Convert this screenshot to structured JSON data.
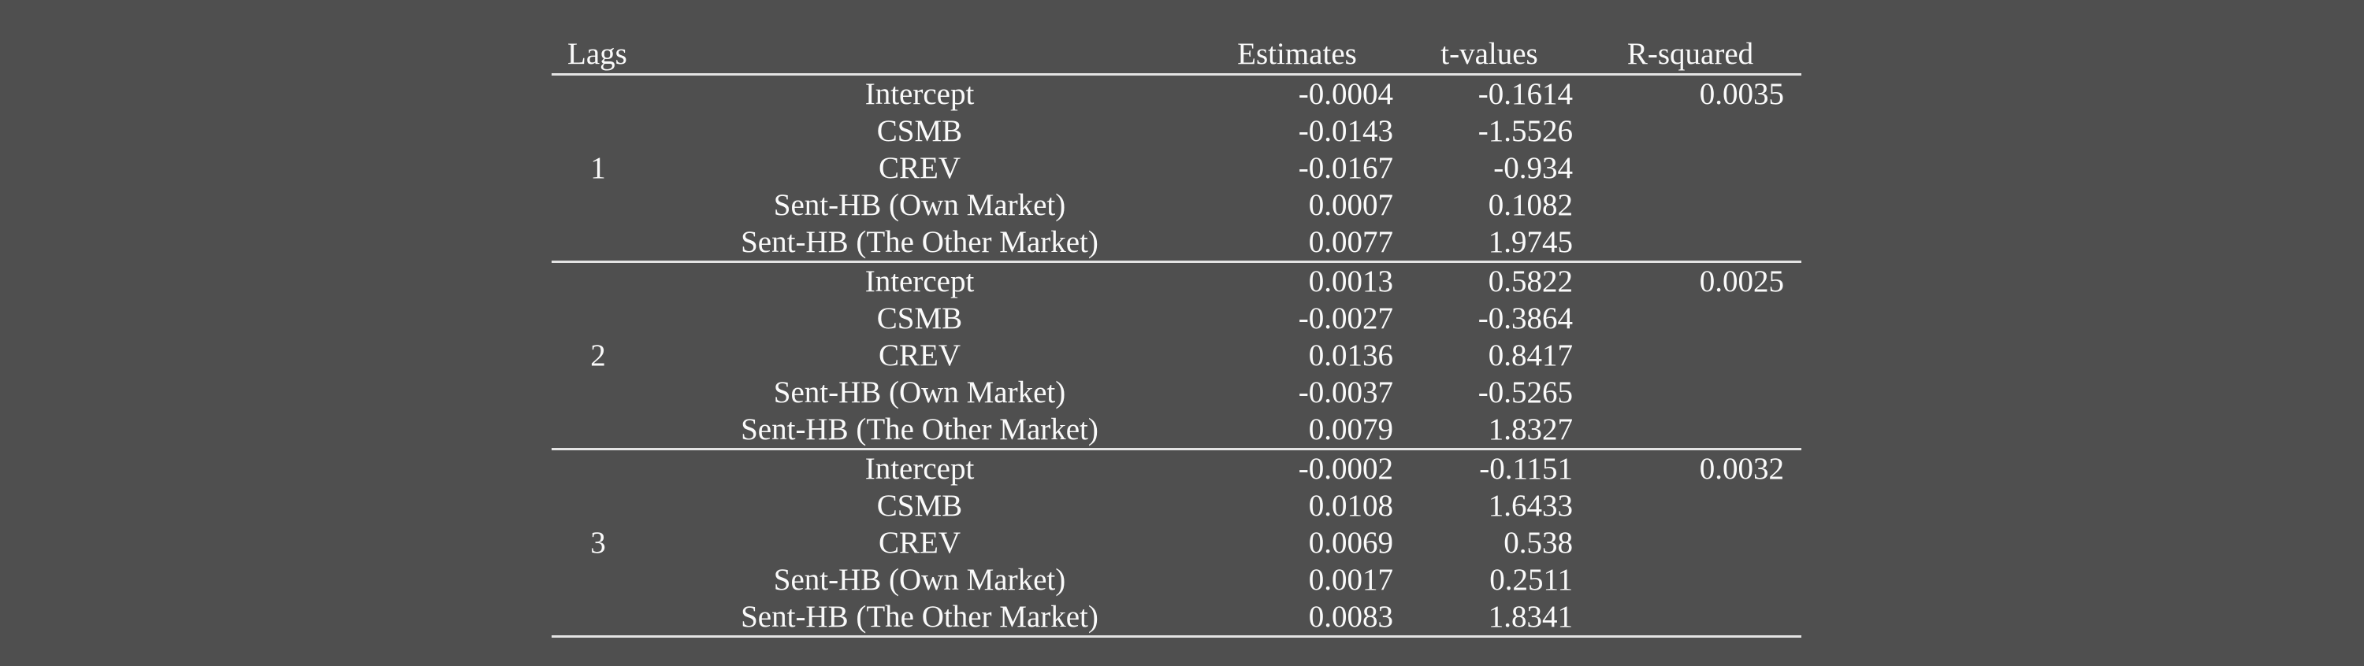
{
  "colors": {
    "background": "#4f4f4f",
    "text": "#fafafa",
    "rule": "#e4e4e4"
  },
  "table": {
    "headers": {
      "lags": "Lags",
      "variable": "",
      "estimates": "Estimates",
      "t_values": "t-values",
      "r_squared": "R-squared"
    },
    "blocks": [
      {
        "lag": "1",
        "rows": [
          {
            "variable": "Intercept",
            "estimate": "-0.0004",
            "t_value": "-0.1614",
            "r_squared": "0.0035"
          },
          {
            "variable": "CSMB",
            "estimate": "-0.0143",
            "t_value": "-1.5526",
            "r_squared": ""
          },
          {
            "variable": "CREV",
            "estimate": "-0.0167",
            "t_value": "-0.934",
            "r_squared": ""
          },
          {
            "variable": "Sent-HB (Own Market)",
            "estimate": "0.0007",
            "t_value": "0.1082",
            "r_squared": ""
          },
          {
            "variable": "Sent-HB (The Other Market)",
            "estimate": "0.0077",
            "t_value": "1.9745",
            "r_squared": ""
          }
        ]
      },
      {
        "lag": "2",
        "rows": [
          {
            "variable": "Intercept",
            "estimate": "0.0013",
            "t_value": "0.5822",
            "r_squared": "0.0025"
          },
          {
            "variable": "CSMB",
            "estimate": "-0.0027",
            "t_value": "-0.3864",
            "r_squared": ""
          },
          {
            "variable": "CREV",
            "estimate": "0.0136",
            "t_value": "0.8417",
            "r_squared": ""
          },
          {
            "variable": "Sent-HB (Own Market)",
            "estimate": "-0.0037",
            "t_value": "-0.5265",
            "r_squared": ""
          },
          {
            "variable": "Sent-HB (The Other Market)",
            "estimate": "0.0079",
            "t_value": "1.8327",
            "r_squared": ""
          }
        ]
      },
      {
        "lag": "3",
        "rows": [
          {
            "variable": "Intercept",
            "estimate": "-0.0002",
            "t_value": "-0.1151",
            "r_squared": "0.0032"
          },
          {
            "variable": "CSMB",
            "estimate": "0.0108",
            "t_value": "1.6433",
            "r_squared": ""
          },
          {
            "variable": "CREV",
            "estimate": "0.0069",
            "t_value": "0.538",
            "r_squared": ""
          },
          {
            "variable": "Sent-HB (Own Market)",
            "estimate": "0.0017",
            "t_value": "0.2511",
            "r_squared": ""
          },
          {
            "variable": "Sent-HB (The Other Market)",
            "estimate": "0.0083",
            "t_value": "1.8341",
            "r_squared": ""
          }
        ]
      }
    ]
  }
}
